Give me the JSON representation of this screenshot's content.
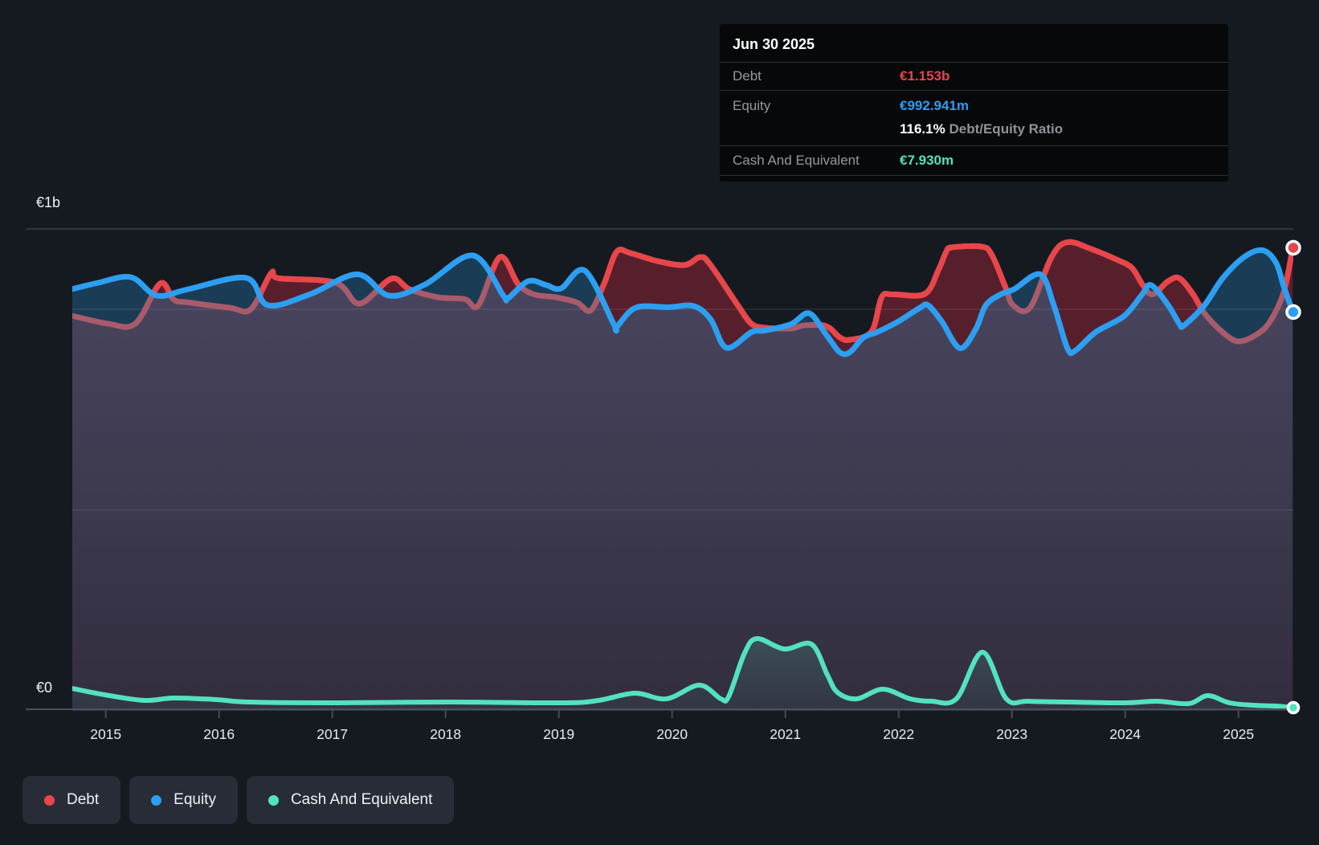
{
  "colors": {
    "debt": "#e8464a",
    "debt_muted": "#a85b6b",
    "debt_fill": "#571f2b",
    "equity": "#2d9ff2",
    "equity_fill": "#1b3c55",
    "cash": "#53e2c0",
    "background": "#151a21",
    "plot_fill_top": "#4a4660",
    "plot_fill_bottom": "#322e3f",
    "grid_strong": "#394049",
    "grid_faint": "rgba(255,255,255,0.09)",
    "axis_line": "#4a515b",
    "axis_text": "#e7eaee",
    "y_label_text": "#eef1f3"
  },
  "tooltip": {
    "date": "Jun 30 2025",
    "debt_label": "Debt",
    "debt_value": "€1.153b",
    "equity_label": "Equity",
    "equity_value": "€992.941m",
    "ratio_value": "116.1%",
    "ratio_label": "Debt/Equity Ratio",
    "cash_label": "Cash And Equivalent",
    "cash_value": "€7.930m"
  },
  "legend": {
    "items": [
      {
        "label": "Debt",
        "color_key": "debt"
      },
      {
        "label": "Equity",
        "color_key": "equity"
      },
      {
        "label": "Cash And Equivalent",
        "color_key": "cash"
      }
    ]
  },
  "chart_data": {
    "type": "area",
    "unit": "EUR billions",
    "x_axis": {
      "years": [
        2015,
        2016,
        2017,
        2018,
        2019,
        2020,
        2021,
        2022,
        2023,
        2024,
        2025
      ],
      "range": [
        2014.7,
        2025.48
      ]
    },
    "y_axis": {
      "labels": [
        "€1b",
        "€0"
      ],
      "range_b": [
        0,
        1.2
      ],
      "gridlines_b": [
        1.2,
        1.0,
        0.5,
        0.0
      ]
    },
    "series": [
      {
        "id": "debt",
        "name": "Debt",
        "points": [
          [
            2014.7,
            0.984
          ],
          [
            2015.02,
            0.964
          ],
          [
            2015.26,
            0.964
          ],
          [
            2015.48,
            1.064
          ],
          [
            2015.6,
            1.024
          ],
          [
            2015.73,
            1.017
          ],
          [
            2016.09,
            1.004
          ],
          [
            2016.28,
            1.0
          ],
          [
            2016.46,
            1.09
          ],
          [
            2016.53,
            1.077
          ],
          [
            2017.03,
            1.066
          ],
          [
            2017.24,
            1.014
          ],
          [
            2017.52,
            1.076
          ],
          [
            2017.68,
            1.05
          ],
          [
            2017.93,
            1.03
          ],
          [
            2018.17,
            1.025
          ],
          [
            2018.29,
            1.01
          ],
          [
            2018.48,
            1.13
          ],
          [
            2018.64,
            1.063
          ],
          [
            2018.78,
            1.037
          ],
          [
            2018.97,
            1.03
          ],
          [
            2019.16,
            1.017
          ],
          [
            2019.28,
            0.997
          ],
          [
            2019.4,
            1.064
          ],
          [
            2019.51,
            1.143
          ],
          [
            2019.63,
            1.14
          ],
          [
            2019.87,
            1.12
          ],
          [
            2020.11,
            1.11
          ],
          [
            2020.25,
            1.13
          ],
          [
            2020.34,
            1.11
          ],
          [
            2020.58,
            1.01
          ],
          [
            2020.7,
            0.964
          ],
          [
            2020.82,
            0.954
          ],
          [
            2021.05,
            0.952
          ],
          [
            2021.17,
            0.96
          ],
          [
            2021.36,
            0.958
          ],
          [
            2021.48,
            0.93
          ],
          [
            2021.57,
            0.924
          ],
          [
            2021.76,
            0.944
          ],
          [
            2021.85,
            1.03
          ],
          [
            2021.95,
            1.037
          ],
          [
            2022.23,
            1.038
          ],
          [
            2022.35,
            1.097
          ],
          [
            2022.42,
            1.143
          ],
          [
            2022.47,
            1.154
          ],
          [
            2022.73,
            1.156
          ],
          [
            2022.82,
            1.137
          ],
          [
            2022.94,
            1.057
          ],
          [
            2023.01,
            1.01
          ],
          [
            2023.16,
            1.004
          ],
          [
            2023.35,
            1.13
          ],
          [
            2023.49,
            1.167
          ],
          [
            2023.7,
            1.15
          ],
          [
            2023.93,
            1.123
          ],
          [
            2024.06,
            1.103
          ],
          [
            2024.15,
            1.063
          ],
          [
            2024.24,
            1.037
          ],
          [
            2024.38,
            1.07
          ],
          [
            2024.48,
            1.077
          ],
          [
            2024.6,
            1.037
          ],
          [
            2024.7,
            0.99
          ],
          [
            2024.86,
            0.943
          ],
          [
            2025.0,
            0.92
          ],
          [
            2025.16,
            0.937
          ],
          [
            2025.28,
            0.97
          ],
          [
            2025.4,
            1.043
          ],
          [
            2025.48,
            1.153
          ]
        ]
      },
      {
        "id": "equity",
        "name": "Equity",
        "points": [
          [
            2014.7,
            1.05
          ],
          [
            2014.92,
            1.065
          ],
          [
            2015.22,
            1.08
          ],
          [
            2015.45,
            1.034
          ],
          [
            2015.73,
            1.05
          ],
          [
            2016.24,
            1.078
          ],
          [
            2016.43,
            1.01
          ],
          [
            2016.8,
            1.037
          ],
          [
            2017.22,
            1.087
          ],
          [
            2017.5,
            1.034
          ],
          [
            2017.82,
            1.062
          ],
          [
            2018.24,
            1.134
          ],
          [
            2018.51,
            1.034
          ],
          [
            2018.55,
            1.027
          ],
          [
            2018.73,
            1.07
          ],
          [
            2018.89,
            1.06
          ],
          [
            2019.02,
            1.052
          ],
          [
            2019.23,
            1.096
          ],
          [
            2019.49,
            0.96
          ],
          [
            2019.51,
            0.956
          ],
          [
            2019.68,
            1.004
          ],
          [
            2019.97,
            1.005
          ],
          [
            2020.19,
            1.008
          ],
          [
            2020.34,
            0.975
          ],
          [
            2020.48,
            0.904
          ],
          [
            2020.7,
            0.943
          ],
          [
            2020.82,
            0.947
          ],
          [
            2021.05,
            0.963
          ],
          [
            2021.21,
            0.99
          ],
          [
            2021.36,
            0.937
          ],
          [
            2021.48,
            0.893
          ],
          [
            2021.57,
            0.893
          ],
          [
            2021.69,
            0.93
          ],
          [
            2021.81,
            0.943
          ],
          [
            2022.0,
            0.97
          ],
          [
            2022.19,
            1.004
          ],
          [
            2022.26,
            1.01
          ],
          [
            2022.38,
            0.97
          ],
          [
            2022.54,
            0.903
          ],
          [
            2022.68,
            0.95
          ],
          [
            2022.77,
            1.01
          ],
          [
            2022.9,
            1.037
          ],
          [
            2023.02,
            1.05
          ],
          [
            2023.25,
            1.087
          ],
          [
            2023.37,
            1.01
          ],
          [
            2023.49,
            0.903
          ],
          [
            2023.56,
            0.897
          ],
          [
            2023.74,
            0.943
          ],
          [
            2023.99,
            0.983
          ],
          [
            2024.15,
            1.037
          ],
          [
            2024.23,
            1.06
          ],
          [
            2024.38,
            1.01
          ],
          [
            2024.48,
            0.963
          ],
          [
            2024.52,
            0.96
          ],
          [
            2024.7,
            1.01
          ],
          [
            2024.86,
            1.077
          ],
          [
            2025.05,
            1.13
          ],
          [
            2025.21,
            1.147
          ],
          [
            2025.33,
            1.117
          ],
          [
            2025.4,
            1.057
          ],
          [
            2025.48,
            0.993
          ]
        ]
      },
      {
        "id": "cash",
        "name": "Cash And Equivalent",
        "points": [
          [
            2014.7,
            0.056
          ],
          [
            2014.99,
            0.04
          ],
          [
            2015.34,
            0.026
          ],
          [
            2015.6,
            0.032
          ],
          [
            2015.98,
            0.028
          ],
          [
            2016.26,
            0.022
          ],
          [
            2017.04,
            0.02
          ],
          [
            2018.04,
            0.022
          ],
          [
            2019.03,
            0.02
          ],
          [
            2019.35,
            0.026
          ],
          [
            2019.67,
            0.044
          ],
          [
            2019.95,
            0.03
          ],
          [
            2020.24,
            0.064
          ],
          [
            2020.43,
            0.03
          ],
          [
            2020.5,
            0.036
          ],
          [
            2020.64,
            0.144
          ],
          [
            2020.75,
            0.18
          ],
          [
            2020.99,
            0.154
          ],
          [
            2021.23,
            0.166
          ],
          [
            2021.37,
            0.09
          ],
          [
            2021.46,
            0.046
          ],
          [
            2021.63,
            0.03
          ],
          [
            2021.86,
            0.054
          ],
          [
            2022.1,
            0.03
          ],
          [
            2022.29,
            0.024
          ],
          [
            2022.51,
            0.03
          ],
          [
            2022.74,
            0.146
          ],
          [
            2022.95,
            0.03
          ],
          [
            2023.14,
            0.024
          ],
          [
            2023.5,
            0.022
          ],
          [
            2023.99,
            0.02
          ],
          [
            2024.28,
            0.024
          ],
          [
            2024.56,
            0.018
          ],
          [
            2024.73,
            0.038
          ],
          [
            2024.92,
            0.02
          ],
          [
            2025.13,
            0.014
          ],
          [
            2025.34,
            0.012
          ],
          [
            2025.48,
            0.008
          ]
        ]
      }
    ],
    "end_markers": [
      {
        "series": "debt",
        "value_b": 1.153
      },
      {
        "series": "equity",
        "value_b": 0.993
      },
      {
        "series": "cash",
        "value_b": 0.008
      }
    ]
  }
}
